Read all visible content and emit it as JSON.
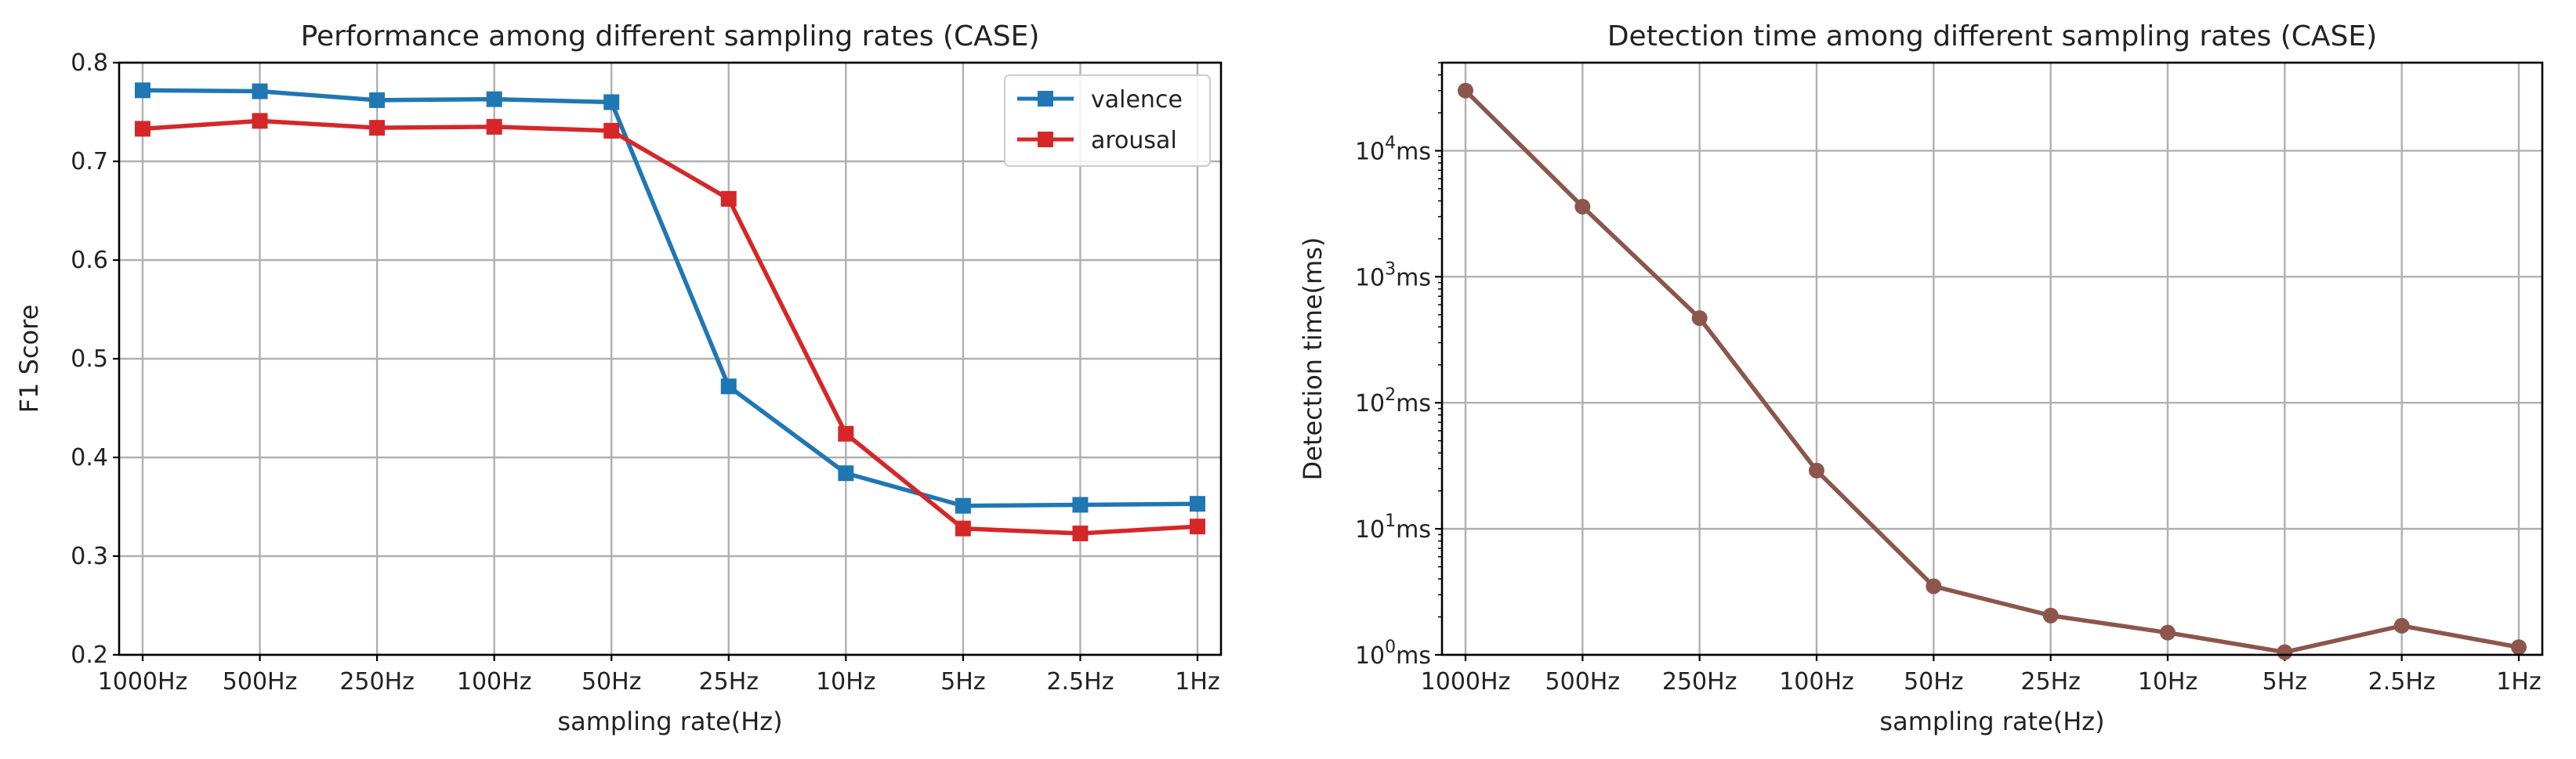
{
  "chart_data": [
    {
      "type": "line",
      "title": "Performance among different sampling rates (CASE)",
      "xlabel": "sampling rate(Hz)",
      "ylabel": "F1 Score",
      "categories": [
        "1000Hz",
        "500Hz",
        "250Hz",
        "100Hz",
        "50Hz",
        "25Hz",
        "10Hz",
        "5Hz",
        "2.5Hz",
        "1Hz"
      ],
      "ylim": [
        0.2,
        0.8
      ],
      "yticks": [
        "0.2",
        "0.3",
        "0.4",
        "0.5",
        "0.6",
        "0.7",
        "0.8"
      ],
      "grid": true,
      "legend_position": "top-right",
      "series": [
        {
          "name": "valence",
          "color": "#1f77b4",
          "marker": "square",
          "values": [
            0.772,
            0.771,
            0.762,
            0.763,
            0.76,
            0.472,
            0.384,
            0.351,
            0.352,
            0.353
          ]
        },
        {
          "name": "arousal",
          "color": "#d62728",
          "marker": "square",
          "values": [
            0.733,
            0.741,
            0.734,
            0.735,
            0.731,
            0.662,
            0.424,
            0.328,
            0.323,
            0.33
          ]
        }
      ]
    },
    {
      "type": "line",
      "title": "Detection time among different sampling rates (CASE)",
      "xlabel": "sampling rate(Hz)",
      "ylabel": "Detection time(ms)",
      "categories": [
        "1000Hz",
        "500Hz",
        "250Hz",
        "100Hz",
        "50Hz",
        "25Hz",
        "10Hz",
        "5Hz",
        "2.5Hz",
        "1Hz"
      ],
      "yscale": "log",
      "ylim": [
        1,
        50000
      ],
      "yticks": [
        "10^0ms",
        "10^1ms",
        "10^2ms",
        "10^3ms",
        "10^4ms"
      ],
      "grid": true,
      "series": [
        {
          "name": "detection time",
          "color": "#8c564b",
          "marker": "circle",
          "values": [
            30000,
            3600,
            470,
            29,
            3.5,
            2.05,
            1.5,
            1.05,
            1.7,
            1.15
          ]
        }
      ]
    }
  ]
}
